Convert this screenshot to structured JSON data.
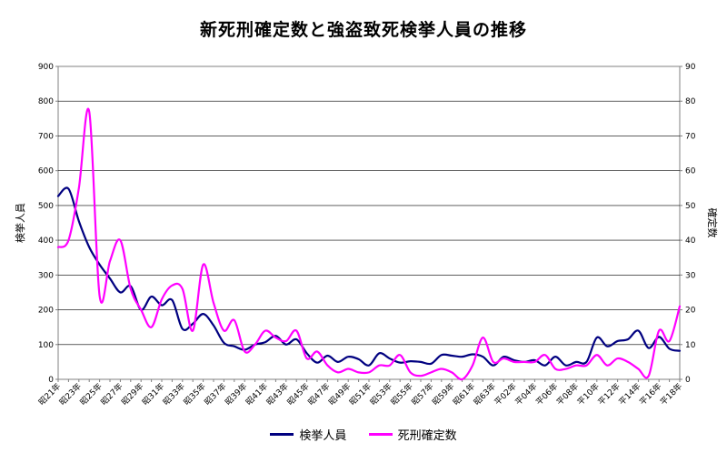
{
  "chart_data": {
    "type": "line",
    "title": "新死刑確定数と強盗致死検挙人員の推移",
    "ylabel_left": "検挙人員",
    "ylabel_right": "確定数",
    "ylim_left": [
      0,
      900
    ],
    "ylim_right": [
      0,
      90
    ],
    "yticks_left": [
      "0",
      "100",
      "200",
      "300",
      "400",
      "500",
      "600",
      "700",
      "800",
      "900"
    ],
    "yticks_right": [
      "0",
      "10",
      "20",
      "30",
      "40",
      "50",
      "60",
      "70",
      "80",
      "90"
    ],
    "grid": true,
    "legend_position": "bottom",
    "x_labels": [
      "昭21年",
      "昭23年",
      "昭25年",
      "昭27年",
      "昭29年",
      "昭31年",
      "昭33年",
      "昭35年",
      "昭37年",
      "昭39年",
      "昭41年",
      "昭43年",
      "昭45年",
      "昭47年",
      "昭49年",
      "昭51年",
      "昭53年",
      "昭55年",
      "昭57年",
      "昭59年",
      "昭61年",
      "昭63年",
      "平02年",
      "平04年",
      "平06年",
      "平08年",
      "平10年",
      "平12年",
      "平14年",
      "平16年",
      "平18年"
    ],
    "series": [
      {
        "name": "検挙人員",
        "axis": "left",
        "color": "#000080",
        "values": [
          527,
          548,
          455,
          380,
          330,
          290,
          250,
          268,
          200,
          238,
          213,
          228,
          145,
          160,
          188,
          155,
          105,
          95,
          85,
          100,
          107,
          125,
          100,
          115,
          75,
          48,
          68,
          50,
          65,
          58,
          40,
          75,
          60,
          48,
          52,
          50,
          45,
          70,
          68,
          65,
          72,
          65,
          40,
          65,
          55,
          50,
          55,
          40,
          65,
          40,
          50,
          50,
          120,
          95,
          110,
          115,
          140,
          90,
          122,
          88,
          82
        ]
      },
      {
        "name": "死刑確定数",
        "axis": "right",
        "color": "#ff00ff",
        "values": [
          38,
          40,
          55,
          77,
          24,
          34,
          40,
          26,
          20,
          15,
          23,
          27,
          26,
          14,
          33,
          22,
          14,
          17,
          8,
          10,
          14,
          12,
          11,
          14,
          6,
          8,
          4,
          2,
          3,
          2,
          2,
          4,
          4,
          7,
          2,
          1,
          2,
          3,
          2,
          0,
          4,
          12,
          5,
          6,
          5,
          5,
          5,
          7,
          3,
          3,
          4,
          4,
          7,
          4,
          6,
          5,
          3,
          1,
          14,
          11,
          21
        ]
      }
    ]
  }
}
